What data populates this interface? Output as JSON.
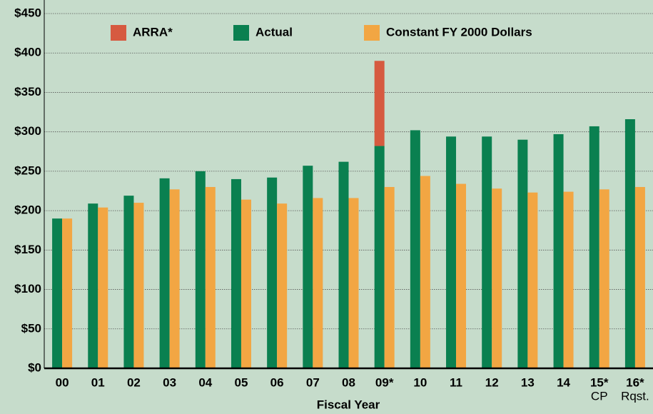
{
  "chart_data": {
    "type": "bar",
    "stacked_on": "Actual",
    "categories": [
      "00",
      "01",
      "02",
      "03",
      "04",
      "05",
      "06",
      "07",
      "08",
      "09*",
      "10",
      "11",
      "12",
      "13",
      "14",
      "15*",
      "16*"
    ],
    "category_sublabels": [
      null,
      null,
      null,
      null,
      null,
      null,
      null,
      null,
      null,
      null,
      null,
      null,
      null,
      null,
      null,
      "CP",
      "Rqst."
    ],
    "series": [
      {
        "name": "ARRA*",
        "color": "#d65a40",
        "values": [
          null,
          null,
          null,
          null,
          null,
          null,
          null,
          null,
          null,
          108,
          null,
          null,
          null,
          null,
          null,
          null,
          null
        ]
      },
      {
        "name": "Actual",
        "color": "#0a8050",
        "values": [
          190,
          209,
          219,
          241,
          250,
          240,
          242,
          257,
          262,
          282,
          302,
          294,
          294,
          290,
          297,
          307,
          316
        ]
      },
      {
        "name": "Constant FY 2000 Dollars",
        "color": "#f2a643",
        "values": [
          190,
          204,
          210,
          227,
          230,
          214,
          209,
          216,
          216,
          230,
          244,
          234,
          228,
          223,
          224,
          227,
          230
        ]
      }
    ],
    "xlabel": "Fiscal Year",
    "ylim": [
      0,
      450
    ],
    "yticks": [
      {
        "value": 0,
        "label": "$0"
      },
      {
        "value": 50,
        "label": "$50"
      },
      {
        "value": 100,
        "label": "$100"
      },
      {
        "value": 150,
        "label": "$150"
      },
      {
        "value": 200,
        "label": "$200"
      },
      {
        "value": 250,
        "label": "$250"
      },
      {
        "value": 300,
        "label": "$300"
      },
      {
        "value": 350,
        "label": "$350"
      },
      {
        "value": 400,
        "label": "$400"
      },
      {
        "value": 450,
        "label": "$450"
      }
    ],
    "grid": true,
    "legend": "top"
  }
}
